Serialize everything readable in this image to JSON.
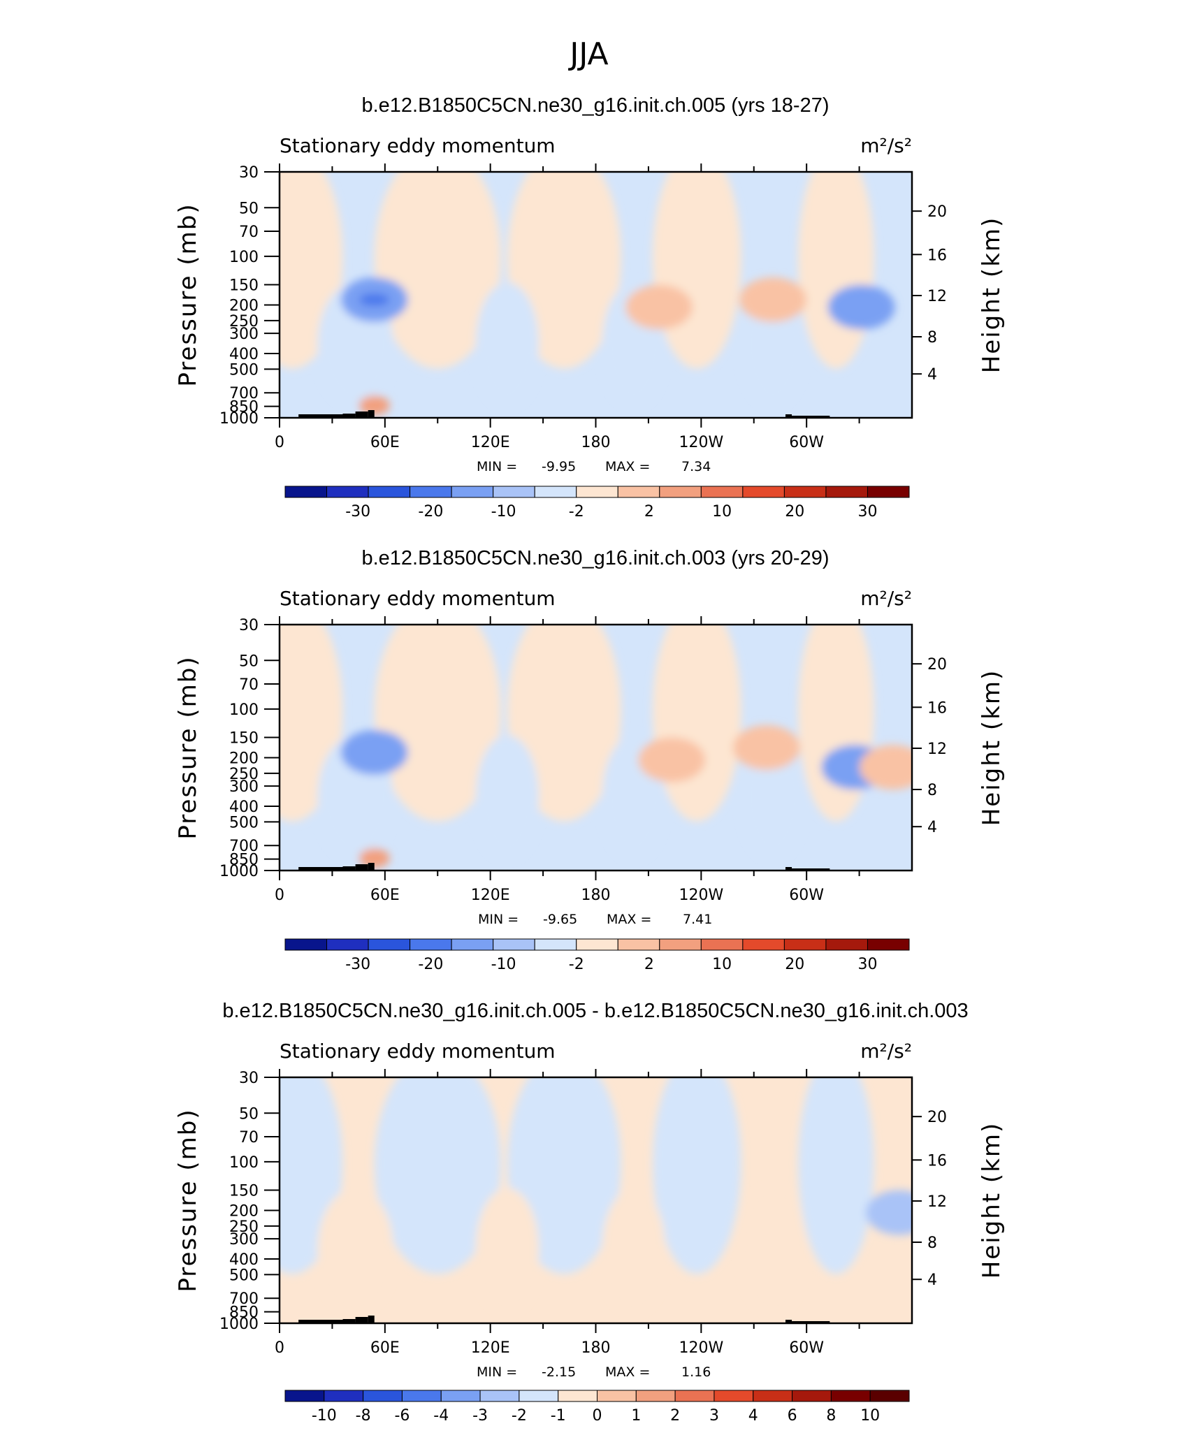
{
  "page_title": "JJA",
  "chart_data": [
    {
      "type": "contour",
      "title": "b.e12.B1850C5CN.ne30_g16.init.ch.005 (yrs 18-27)",
      "subtitle_left": "Stationary eddy momentum",
      "units": "m²/s²",
      "ylabel": "Pressure (mb)",
      "ylabel_right": "Height (km)",
      "x_ticks": [
        "0",
        "60E",
        "120E",
        "180",
        "120W",
        "60W"
      ],
      "y_ticks": [
        "30",
        "50",
        "70",
        "100",
        "150",
        "200",
        "250",
        "300",
        "400",
        "500",
        "700",
        "850",
        "1000"
      ],
      "y_ticks_right": [
        "20",
        "16",
        "12",
        "8",
        "4"
      ],
      "stats": {
        "min_label": "MIN =",
        "min": "-9.95",
        "max_label": "MAX =",
        "max": "7.34"
      },
      "colorbar_labels": [
        "-30",
        "-20",
        "-10",
        "-2",
        "2",
        "10",
        "20",
        "30"
      ],
      "colorbar_colors": [
        "#08158c",
        "#1f2fbf",
        "#2a55dc",
        "#4a78ec",
        "#7aa0f3",
        "#a9c3f7",
        "#d4e5fb",
        "#fde6d2",
        "#f9c2a4",
        "#f2a07f",
        "#ea7253",
        "#e44a2b",
        "#c82f17",
        "#a5190c",
        "#780000"
      ],
      "features": [
        {
          "kind": "negative",
          "x": 0.15,
          "y": 0.52,
          "level": 2
        },
        {
          "kind": "negative",
          "x": 0.15,
          "y": 0.52,
          "level": 3
        },
        {
          "kind": "positive",
          "x": 0.6,
          "y": 0.55,
          "level": 1
        },
        {
          "kind": "positive",
          "x": 0.78,
          "y": 0.52,
          "level": 1
        },
        {
          "kind": "negative",
          "x": 0.92,
          "y": 0.55,
          "level": 2
        },
        {
          "kind": "positive",
          "x": 0.15,
          "y": 0.95,
          "level": 2
        }
      ]
    },
    {
      "type": "contour",
      "title": "b.e12.B1850C5CN.ne30_g16.init.ch.003 (yrs 20-29)",
      "subtitle_left": "Stationary eddy momentum",
      "units": "m²/s²",
      "ylabel": "Pressure (mb)",
      "ylabel_right": "Height (km)",
      "x_ticks": [
        "0",
        "60E",
        "120E",
        "180",
        "120W",
        "60W"
      ],
      "y_ticks": [
        "30",
        "50",
        "70",
        "100",
        "150",
        "200",
        "250",
        "300",
        "400",
        "500",
        "700",
        "850",
        "1000"
      ],
      "y_ticks_right": [
        "20",
        "16",
        "12",
        "8",
        "4"
      ],
      "stats": {
        "min_label": "MIN =",
        "min": "-9.65",
        "max_label": "MAX =",
        "max": "7.41"
      },
      "colorbar_labels": [
        "-30",
        "-20",
        "-10",
        "-2",
        "2",
        "10",
        "20",
        "30"
      ],
      "colorbar_colors": [
        "#08158c",
        "#1f2fbf",
        "#2a55dc",
        "#4a78ec",
        "#7aa0f3",
        "#a9c3f7",
        "#d4e5fb",
        "#fde6d2",
        "#f9c2a4",
        "#f2a07f",
        "#ea7253",
        "#e44a2b",
        "#c82f17",
        "#a5190c",
        "#780000"
      ],
      "features": [
        {
          "kind": "negative",
          "x": 0.15,
          "y": 0.52,
          "level": 2
        },
        {
          "kind": "positive",
          "x": 0.62,
          "y": 0.55,
          "level": 1
        },
        {
          "kind": "positive",
          "x": 0.77,
          "y": 0.5,
          "level": 1
        },
        {
          "kind": "negative",
          "x": 0.91,
          "y": 0.58,
          "level": 2
        },
        {
          "kind": "positive",
          "x": 0.97,
          "y": 0.58,
          "level": 1
        },
        {
          "kind": "positive",
          "x": 0.15,
          "y": 0.95,
          "level": 2
        }
      ]
    },
    {
      "type": "contour",
      "title": "b.e12.B1850C5CN.ne30_g16.init.ch.005 - b.e12.B1850C5CN.ne30_g16.init.ch.003",
      "subtitle_left": "Stationary eddy momentum",
      "units": "m²/s²",
      "ylabel": "Pressure (mb)",
      "ylabel_right": "Height (km)",
      "x_ticks": [
        "0",
        "60E",
        "120E",
        "180",
        "120W",
        "60W"
      ],
      "y_ticks": [
        "30",
        "50",
        "70",
        "100",
        "150",
        "200",
        "250",
        "300",
        "400",
        "500",
        "700",
        "850",
        "1000"
      ],
      "y_ticks_right": [
        "20",
        "16",
        "12",
        "8",
        "4"
      ],
      "stats": {
        "min_label": "MIN =",
        "min": "-2.15",
        "max_label": "MAX =",
        "max": "1.16"
      },
      "colorbar_labels": [
        "-10",
        "-8",
        "-6",
        "-4",
        "-3",
        "-2",
        "-1",
        "0",
        "1",
        "2",
        "3",
        "4",
        "6",
        "8",
        "10"
      ],
      "colorbar_colors": [
        "#08158c",
        "#1f2fbf",
        "#2a55dc",
        "#4a78ec",
        "#7aa0f3",
        "#a9c3f7",
        "#d4e5fb",
        "#fde6d2",
        "#f9c2a4",
        "#f2a07f",
        "#ea7253",
        "#e44a2b",
        "#c82f17",
        "#a5190c",
        "#780000",
        "#5a0000"
      ],
      "features": [
        {
          "kind": "negative",
          "x": 0.98,
          "y": 0.55,
          "level": 1
        }
      ]
    }
  ]
}
